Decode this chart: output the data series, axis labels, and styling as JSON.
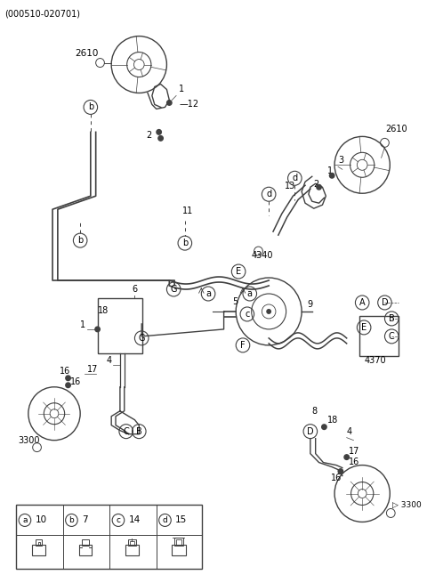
{
  "title": "(000510-020701)",
  "bg_color": "#ffffff",
  "lc": "#404040",
  "tc": "#000000",
  "fig_width": 4.8,
  "fig_height": 6.55,
  "dpi": 100,
  "legend_items": [
    {
      "label": "a",
      "num": "10"
    },
    {
      "label": "b",
      "num": "7"
    },
    {
      "label": "c",
      "num": "14"
    },
    {
      "label": "d",
      "num": "15"
    }
  ]
}
